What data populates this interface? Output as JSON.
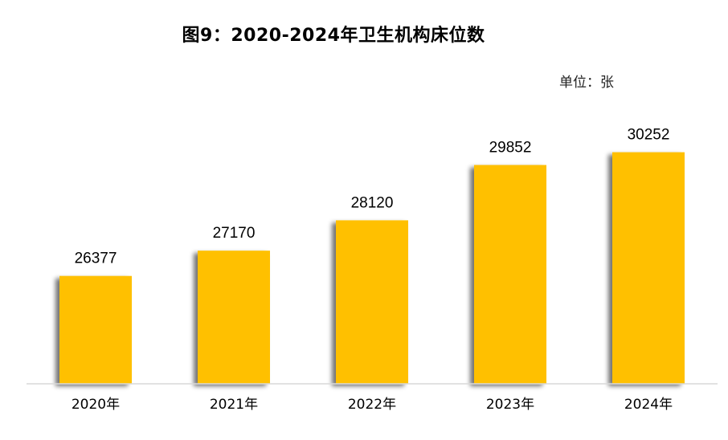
{
  "chart_data": {
    "type": "bar",
    "title": "图9：2020-2024年卫生机构床位数",
    "unit": "单位：张",
    "categories": [
      "2020年",
      "2021年",
      "2022年",
      "2023年",
      "2024年"
    ],
    "values": [
      26377,
      27170,
      28120,
      29852,
      30252
    ],
    "ylim": [
      23000,
      31600
    ],
    "xlabel": "",
    "ylabel": "",
    "grid": false,
    "legend": "none",
    "bar_color": "#FFC000",
    "shadow_color": "#8C8C8C",
    "axis_color": "#D9D9D9"
  }
}
